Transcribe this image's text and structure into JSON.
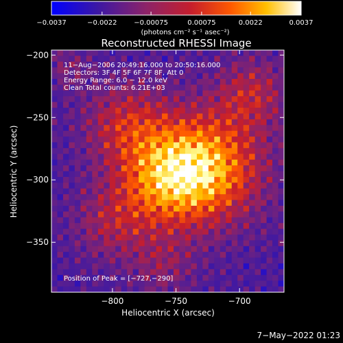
{
  "colors": {
    "background": "#000000",
    "foreground": "#ffffff",
    "colormap": [
      "#0000ff",
      "#3a17a6",
      "#5a1f8f",
      "#8d2368",
      "#c61e2c",
      "#ff5a00",
      "#ffbf00",
      "#ffff9f",
      "#ffffff"
    ]
  },
  "chart_data": {
    "type": "heatmap",
    "title": "Reconstructed RHESSI Image",
    "xlabel": "Heliocentric X (arcsec)",
    "ylabel": "Heliocentric Y (arcsec)",
    "xlim": [
      -848,
      -665
    ],
    "ylim": [
      -390,
      -196
    ],
    "x_ticks": [
      {
        "value": -800,
        "label": "−800"
      },
      {
        "value": -750,
        "label": "−750"
      },
      {
        "value": -700,
        "label": "−700"
      }
    ],
    "y_ticks": [
      {
        "value": -200,
        "label": "−200"
      },
      {
        "value": -250,
        "label": "−250"
      },
      {
        "value": -300,
        "label": "−300"
      },
      {
        "value": -350,
        "label": "−350"
      }
    ],
    "colorbar": {
      "min": -0.0037,
      "max": 0.0037,
      "ticks": [
        {
          "value": -0.0037,
          "label": "−0.0037"
        },
        {
          "value": -0.0022,
          "label": "−0.0022"
        },
        {
          "value": -0.00075,
          "label": "−0.00075"
        },
        {
          "value": 0.00075,
          "label": "0.00075"
        },
        {
          "value": 0.0022,
          "label": "0.0022"
        },
        {
          "value": 0.0037,
          "label": "0.0037"
        }
      ],
      "units_label": "(photons cm⁻² s⁻¹ asec⁻²)"
    },
    "info_lines": [
      "11−Aug−2006 20:49:16.000 to 20:50:16.000",
      "Detectors: 3F 4F 5F 6F 7F 8F, Att 0",
      "Energy Range: 6.0 − 12.0 keV",
      "Clean    Total counts: 6.21E+03"
    ],
    "peak_text": "Position of Peak = [−727,−290]",
    "peak": {
      "x": -727,
      "y": -290
    },
    "grid": false
  },
  "footer": {
    "timestamp": "7−May−2022 01:23"
  }
}
